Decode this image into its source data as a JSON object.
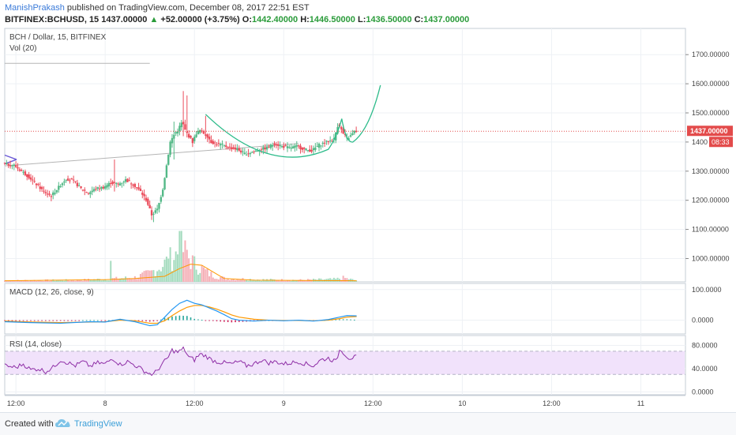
{
  "header": {
    "author": "ManishPrakash",
    "published_text": " published on TradingView.com, December 08, 2017 22:51 EST",
    "symbol": "BITFINEX:BCHUSD, 15",
    "last": "1437.00000",
    "change": "+52.00000 (+3.75%)",
    "o_label": "O:",
    "o_value": "1442.40000",
    "h_label": "H:",
    "h_value": "1446.50000",
    "l_label": "L:",
    "l_value": "1436.50000",
    "c_label": "C:",
    "c_value": "1437.00000"
  },
  "colors": {
    "up": "#2a9b3a",
    "down": "#d03a3a",
    "bull": "#53b987",
    "bear": "#eb4d5c",
    "macd": "#2196f3",
    "signal": "#ff9800",
    "rsi": "#8e2ea6",
    "rsi_band": "#f1e2fb",
    "curve": "#2dbb8a",
    "last_price_line": "#e34b4b",
    "grid": "#eef1f5"
  },
  "chart_data": [
    {
      "type": "candlestick",
      "name": "price",
      "title": "BCH / Dollar, 15, BITFINEX",
      "volume_label": "Vol (20)",
      "y_ticks": [
        "1700.00000",
        "1600.00000",
        "1500.00000",
        "1400",
        "1300.00000",
        "1200.00000",
        "1100.00000",
        "1000.00000"
      ],
      "y_tick_values": [
        1700,
        1600,
        1500,
        1400,
        1300,
        1200,
        1100,
        1000
      ],
      "x_ticks": [
        "12:00",
        "8",
        "12:00",
        "9",
        "12:00",
        "10",
        "12:00",
        "11"
      ],
      "x_tick_hours": [
        12,
        24,
        36,
        48,
        60,
        72,
        84,
        96
      ],
      "x_range_hours": [
        10.5,
        102
      ],
      "ylim": [
        920,
        1790
      ],
      "last_price_label": "1437.00000",
      "countdown_label": "08:33",
      "last_price": 1437,
      "grid": true,
      "anchors": [
        [
          10.5,
          1325
        ],
        [
          12,
          1320
        ],
        [
          13,
          1300
        ],
        [
          14,
          1280
        ],
        [
          15,
          1255
        ],
        [
          16,
          1230
        ],
        [
          17,
          1215
        ],
        [
          18,
          1245
        ],
        [
          19,
          1275
        ],
        [
          20,
          1265
        ],
        [
          21,
          1240
        ],
        [
          22,
          1225
        ],
        [
          23,
          1240
        ],
        [
          24,
          1245
        ],
        [
          25,
          1260
        ],
        [
          26,
          1255
        ],
        [
          27,
          1270
        ],
        [
          28,
          1255
        ],
        [
          29,
          1230
        ],
        [
          29.8,
          1200
        ],
        [
          30.5,
          1150
        ],
        [
          31.3,
          1170
        ],
        [
          32,
          1240
        ],
        [
          32.5,
          1320
        ],
        [
          33,
          1400
        ],
        [
          33.6,
          1430
        ],
        [
          34,
          1440
        ],
        [
          34.6,
          1470
        ],
        [
          35,
          1440
        ],
        [
          35.5,
          1420
        ],
        [
          36,
          1400
        ],
        [
          36.5,
          1430
        ],
        [
          37,
          1440
        ],
        [
          37.5,
          1430
        ],
        [
          38,
          1420
        ],
        [
          38.5,
          1400
        ],
        [
          39,
          1395
        ],
        [
          40,
          1390
        ],
        [
          41,
          1380
        ],
        [
          42,
          1375
        ],
        [
          43,
          1360
        ],
        [
          44,
          1365
        ],
        [
          45,
          1375
        ],
        [
          46,
          1380
        ],
        [
          47,
          1395
        ],
        [
          48,
          1385
        ],
        [
          49,
          1380
        ],
        [
          50,
          1385
        ],
        [
          51,
          1375
        ],
        [
          52,
          1370
        ],
        [
          53,
          1390
        ],
        [
          54,
          1400
        ],
        [
          55,
          1410
        ],
        [
          55.6,
          1465
        ],
        [
          56.2,
          1430
        ],
        [
          56.8,
          1410
        ],
        [
          57.4,
          1425
        ],
        [
          57.8,
          1437
        ]
      ],
      "spikes": [
        {
          "x": 34.6,
          "high": 1575,
          "low": 1420
        },
        {
          "x": 34.9,
          "high": 1560,
          "low": 1430
        },
        {
          "x": 33.3,
          "high": 1470,
          "low": 1340
        },
        {
          "x": 37.5,
          "high": 1490,
          "low": 1410
        },
        {
          "x": 30.5,
          "high": 1160,
          "low": 1125
        },
        {
          "x": 25.2,
          "high": 1340,
          "low": 1230
        }
      ],
      "volume_profile": [
        [
          10.5,
          3
        ],
        [
          20,
          4
        ],
        [
          24,
          6
        ],
        [
          28,
          10
        ],
        [
          30,
          20
        ],
        [
          31.5,
          35
        ],
        [
          33,
          55
        ],
        [
          34.3,
          75
        ],
        [
          35,
          60
        ],
        [
          36,
          40
        ],
        [
          37,
          30
        ],
        [
          38,
          18
        ],
        [
          40,
          8
        ],
        [
          45,
          5
        ],
        [
          50,
          4
        ],
        [
          55,
          6
        ],
        [
          56,
          9
        ],
        [
          57.8,
          3
        ]
      ],
      "volume_spikes": [
        {
          "x": 34.1,
          "v": 92
        },
        {
          "x": 34.7,
          "v": 75
        },
        {
          "x": 35.1,
          "v": 58
        },
        {
          "x": 24.8,
          "v": 38
        },
        {
          "x": 32.6,
          "v": 42
        }
      ],
      "volume_ma_profile": [
        [
          10.5,
          2
        ],
        [
          24,
          4
        ],
        [
          28,
          6
        ],
        [
          32,
          10
        ],
        [
          34,
          24
        ],
        [
          35.5,
          32
        ],
        [
          37,
          30
        ],
        [
          38.5,
          18
        ],
        [
          40,
          6
        ],
        [
          44,
          3
        ],
        [
          57.8,
          2
        ]
      ]
    },
    {
      "type": "line",
      "name": "MACD",
      "title": "MACD (12, 26, close, 9)",
      "y_ticks": [
        "100.0000",
        "0.0000"
      ],
      "y_tick_values": [
        100,
        0
      ],
      "ylim": [
        -45,
        120
      ],
      "series": [
        {
          "name": "macd",
          "points": [
            [
              10.5,
              -5
            ],
            [
              14,
              -8
            ],
            [
              18,
              -10
            ],
            [
              22,
              -5
            ],
            [
              24,
              -6
            ],
            [
              26,
              3
            ],
            [
              28,
              -5
            ],
            [
              30,
              -18
            ],
            [
              31,
              -15
            ],
            [
              32,
              10
            ],
            [
              33,
              35
            ],
            [
              34,
              55
            ],
            [
              35,
              65
            ],
            [
              36,
              55
            ],
            [
              37,
              50
            ],
            [
              38,
              40
            ],
            [
              39,
              30
            ],
            [
              40,
              18
            ],
            [
              41,
              5
            ],
            [
              42,
              0
            ],
            [
              44,
              -3
            ],
            [
              46,
              0
            ],
            [
              48,
              -2
            ],
            [
              50,
              0
            ],
            [
              52,
              -3
            ],
            [
              54,
              2
            ],
            [
              55.5,
              10
            ],
            [
              56.5,
              15
            ],
            [
              57.8,
              14
            ]
          ]
        },
        {
          "name": "signal",
          "points": [
            [
              10.5,
              -3
            ],
            [
              14,
              -6
            ],
            [
              18,
              -8
            ],
            [
              22,
              -6
            ],
            [
              24,
              -5
            ],
            [
              26,
              0
            ],
            [
              28,
              -2
            ],
            [
              30,
              -10
            ],
            [
              31,
              -10
            ],
            [
              32,
              -2
            ],
            [
              33,
              15
            ],
            [
              34,
              30
            ],
            [
              35,
              42
            ],
            [
              36,
              48
            ],
            [
              37,
              48
            ],
            [
              38,
              43
            ],
            [
              39,
              36
            ],
            [
              40,
              27
            ],
            [
              41,
              17
            ],
            [
              42,
              10
            ],
            [
              44,
              3
            ],
            [
              46,
              0
            ],
            [
              48,
              -1
            ],
            [
              50,
              -1
            ],
            [
              52,
              -2
            ],
            [
              54,
              0
            ],
            [
              55.5,
              5
            ],
            [
              56.5,
              10
            ],
            [
              57.8,
              12
            ]
          ]
        }
      ]
    },
    {
      "type": "line",
      "name": "RSI",
      "title": "RSI (14, close)",
      "y_ticks": [
        "80.0000",
        "40.0000",
        "0.0000"
      ],
      "y_tick_values": [
        80,
        40,
        0
      ],
      "ylim": [
        -5,
        97
      ],
      "band": [
        30,
        70
      ],
      "series": [
        {
          "name": "rsi",
          "points": [
            [
              10.5,
              45
            ],
            [
              12,
              42
            ],
            [
              13,
              48
            ],
            [
              14,
              38
            ],
            [
              15,
              40
            ],
            [
              16,
              35
            ],
            [
              17,
              42
            ],
            [
              18,
              55
            ],
            [
              19,
              50
            ],
            [
              20,
              45
            ],
            [
              21,
              52
            ],
            [
              22,
              44
            ],
            [
              23,
              50
            ],
            [
              24,
              48
            ],
            [
              25,
              58
            ],
            [
              26,
              47
            ],
            [
              27,
              52
            ],
            [
              28,
              46
            ],
            [
              29,
              38
            ],
            [
              29.8,
              32
            ],
            [
              30.5,
              30
            ],
            [
              31.5,
              45
            ],
            [
              32.5,
              60
            ],
            [
              33,
              72
            ],
            [
              33.8,
              68
            ],
            [
              34.6,
              75
            ],
            [
              35.2,
              60
            ],
            [
              36,
              55
            ],
            [
              36.7,
              65
            ],
            [
              37.5,
              62
            ],
            [
              38.3,
              55
            ],
            [
              39,
              52
            ],
            [
              40,
              50
            ],
            [
              41,
              48
            ],
            [
              42,
              52
            ],
            [
              43,
              45
            ],
            [
              44,
              48
            ],
            [
              45,
              55
            ],
            [
              46,
              50
            ],
            [
              47,
              52
            ],
            [
              48,
              48
            ],
            [
              49,
              50
            ],
            [
              50,
              52
            ],
            [
              51,
              48
            ],
            [
              52,
              45
            ],
            [
              53,
              55
            ],
            [
              54,
              58
            ],
            [
              55,
              52
            ],
            [
              55.6,
              75
            ],
            [
              56.2,
              65
            ],
            [
              56.8,
              58
            ],
            [
              57.8,
              60
            ]
          ]
        }
      ]
    }
  ],
  "footer": {
    "created_with": "Created with",
    "brand": "TradingView",
    "logo_icon": "tradingview-cloud-icon"
  }
}
